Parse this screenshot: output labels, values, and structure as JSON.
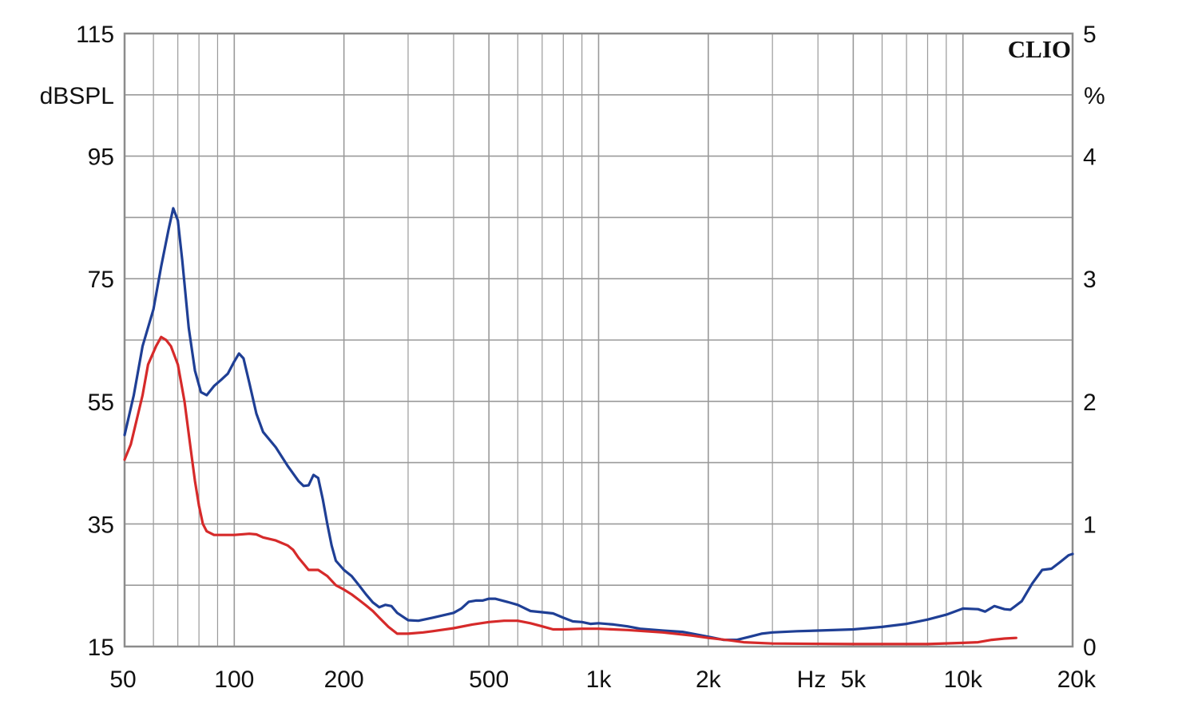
{
  "chart_data": {
    "type": "line",
    "brand": "CLIO",
    "xscale": "log",
    "xlim": [
      50,
      20000
    ],
    "x_ticks": [
      {
        "value": 50,
        "label": "50"
      },
      {
        "value": 100,
        "label": "100"
      },
      {
        "value": 200,
        "label": "200"
      },
      {
        "value": 500,
        "label": "500"
      },
      {
        "value": 1000,
        "label": "1k"
      },
      {
        "value": 2000,
        "label": "2k"
      },
      {
        "value": 5000,
        "label": "5k"
      },
      {
        "value": 10000,
        "label": "10k"
      },
      {
        "value": 20000,
        "label": "20k"
      }
    ],
    "xunit": "Hz",
    "left_axis": {
      "label": "dBSPL",
      "ylim": [
        15,
        115
      ],
      "ticks": [
        {
          "value": 115,
          "label": "115"
        },
        {
          "value": 95,
          "label": "95"
        },
        {
          "value": 75,
          "label": "75"
        },
        {
          "value": 55,
          "label": "55"
        },
        {
          "value": 35,
          "label": "35"
        },
        {
          "value": 15,
          "label": "15"
        }
      ]
    },
    "right_axis": {
      "label": "%",
      "ylim": [
        0,
        5
      ],
      "ticks": [
        {
          "value": 5,
          "label": "5"
        },
        {
          "value": 4,
          "label": "4"
        },
        {
          "value": 3,
          "label": "3"
        },
        {
          "value": 2,
          "label": "2"
        },
        {
          "value": 1,
          "label": "1"
        },
        {
          "value": 0,
          "label": "0"
        }
      ]
    },
    "grid": true,
    "series": [
      {
        "color": "#1f3f95",
        "axis": "left",
        "points": [
          [
            50,
            49.5
          ],
          [
            53,
            56
          ],
          [
            56,
            64
          ],
          [
            60,
            70
          ],
          [
            63,
            77
          ],
          [
            66,
            83
          ],
          [
            68,
            86.5
          ],
          [
            70,
            84.5
          ],
          [
            72,
            78
          ],
          [
            75,
            67
          ],
          [
            78,
            60
          ],
          [
            81,
            56.5
          ],
          [
            84,
            56
          ],
          [
            88,
            57.5
          ],
          [
            92,
            58.5
          ],
          [
            96,
            59.5
          ],
          [
            100,
            61.5
          ],
          [
            103,
            62.8
          ],
          [
            106,
            62
          ],
          [
            110,
            58
          ],
          [
            115,
            53
          ],
          [
            120,
            50
          ],
          [
            130,
            47.5
          ],
          [
            140,
            44.5
          ],
          [
            150,
            42
          ],
          [
            155,
            41.2
          ],
          [
            160,
            41.3
          ],
          [
            165,
            43
          ],
          [
            170,
            42.5
          ],
          [
            175,
            39
          ],
          [
            180,
            35
          ],
          [
            185,
            31.5
          ],
          [
            190,
            29
          ],
          [
            200,
            27.5
          ],
          [
            210,
            26.5
          ],
          [
            220,
            25
          ],
          [
            230,
            23.5
          ],
          [
            240,
            22.2
          ],
          [
            250,
            21.4
          ],
          [
            260,
            21.8
          ],
          [
            270,
            21.6
          ],
          [
            280,
            20.5
          ],
          [
            300,
            19.3
          ],
          [
            320,
            19.2
          ],
          [
            350,
            19.7
          ],
          [
            400,
            20.5
          ],
          [
            420,
            21.2
          ],
          [
            440,
            22.3
          ],
          [
            460,
            22.5
          ],
          [
            480,
            22.5
          ],
          [
            500,
            22.8
          ],
          [
            520,
            22.8
          ],
          [
            560,
            22.3
          ],
          [
            600,
            21.8
          ],
          [
            650,
            20.8
          ],
          [
            700,
            20.6
          ],
          [
            750,
            20.4
          ],
          [
            800,
            19.7
          ],
          [
            850,
            19.1
          ],
          [
            900,
            19.0
          ],
          [
            950,
            18.7
          ],
          [
            1000,
            18.8
          ],
          [
            1100,
            18.6
          ],
          [
            1200,
            18.3
          ],
          [
            1300,
            17.9
          ],
          [
            1500,
            17.6
          ],
          [
            1700,
            17.4
          ],
          [
            2000,
            16.6
          ],
          [
            2200,
            16.1
          ],
          [
            2400,
            16.1
          ],
          [
            2600,
            16.6
          ],
          [
            2800,
            17.1
          ],
          [
            3000,
            17.3
          ],
          [
            3500,
            17.5
          ],
          [
            4000,
            17.6
          ],
          [
            5000,
            17.8
          ],
          [
            6000,
            18.2
          ],
          [
            7000,
            18.7
          ],
          [
            8000,
            19.4
          ],
          [
            9000,
            20.2
          ],
          [
            10000,
            21.2
          ],
          [
            11000,
            21.1
          ],
          [
            11500,
            20.7
          ],
          [
            12200,
            21.6
          ],
          [
            13000,
            21.1
          ],
          [
            13500,
            21.0
          ],
          [
            14500,
            22.4
          ],
          [
            15500,
            25.3
          ],
          [
            16500,
            27.5
          ],
          [
            17500,
            27.7
          ],
          [
            18500,
            28.8
          ],
          [
            19500,
            29.9
          ],
          [
            20000,
            30.1
          ]
        ]
      },
      {
        "color": "#d62a2a",
        "axis": "left",
        "points": [
          [
            50,
            45.5
          ],
          [
            52,
            48
          ],
          [
            54,
            52
          ],
          [
            56,
            56
          ],
          [
            58,
            61
          ],
          [
            61,
            64
          ],
          [
            63,
            65.5
          ],
          [
            65,
            65
          ],
          [
            67,
            64
          ],
          [
            70,
            61
          ],
          [
            73,
            55
          ],
          [
            76,
            47
          ],
          [
            78,
            42
          ],
          [
            80,
            38
          ],
          [
            82,
            35
          ],
          [
            84,
            33.8
          ],
          [
            88,
            33.2
          ],
          [
            95,
            33.2
          ],
          [
            100,
            33.2
          ],
          [
            110,
            33.4
          ],
          [
            115,
            33.3
          ],
          [
            120,
            32.8
          ],
          [
            130,
            32.3
          ],
          [
            140,
            31.5
          ],
          [
            145,
            30.8
          ],
          [
            150,
            29.5
          ],
          [
            160,
            27.5
          ],
          [
            170,
            27.5
          ],
          [
            180,
            26.5
          ],
          [
            190,
            25
          ],
          [
            200,
            24.3
          ],
          [
            210,
            23.5
          ],
          [
            220,
            22.6
          ],
          [
            230,
            21.7
          ],
          [
            240,
            20.8
          ],
          [
            250,
            19.7
          ],
          [
            265,
            18.2
          ],
          [
            280,
            17.1
          ],
          [
            300,
            17.1
          ],
          [
            330,
            17.3
          ],
          [
            350,
            17.5
          ],
          [
            400,
            18.0
          ],
          [
            450,
            18.6
          ],
          [
            500,
            19.0
          ],
          [
            550,
            19.2
          ],
          [
            600,
            19.2
          ],
          [
            650,
            18.8
          ],
          [
            700,
            18.3
          ],
          [
            750,
            17.8
          ],
          [
            800,
            17.8
          ],
          [
            900,
            17.9
          ],
          [
            1000,
            17.9
          ],
          [
            1200,
            17.7
          ],
          [
            1500,
            17.3
          ],
          [
            1800,
            16.8
          ],
          [
            2000,
            16.4
          ],
          [
            2300,
            16.0
          ],
          [
            2500,
            15.7
          ],
          [
            3000,
            15.5
          ],
          [
            5000,
            15.4
          ],
          [
            8000,
            15.4
          ],
          [
            10000,
            15.6
          ],
          [
            11000,
            15.7
          ],
          [
            12000,
            16.1
          ],
          [
            13000,
            16.3
          ],
          [
            14000,
            16.4
          ]
        ]
      }
    ]
  }
}
